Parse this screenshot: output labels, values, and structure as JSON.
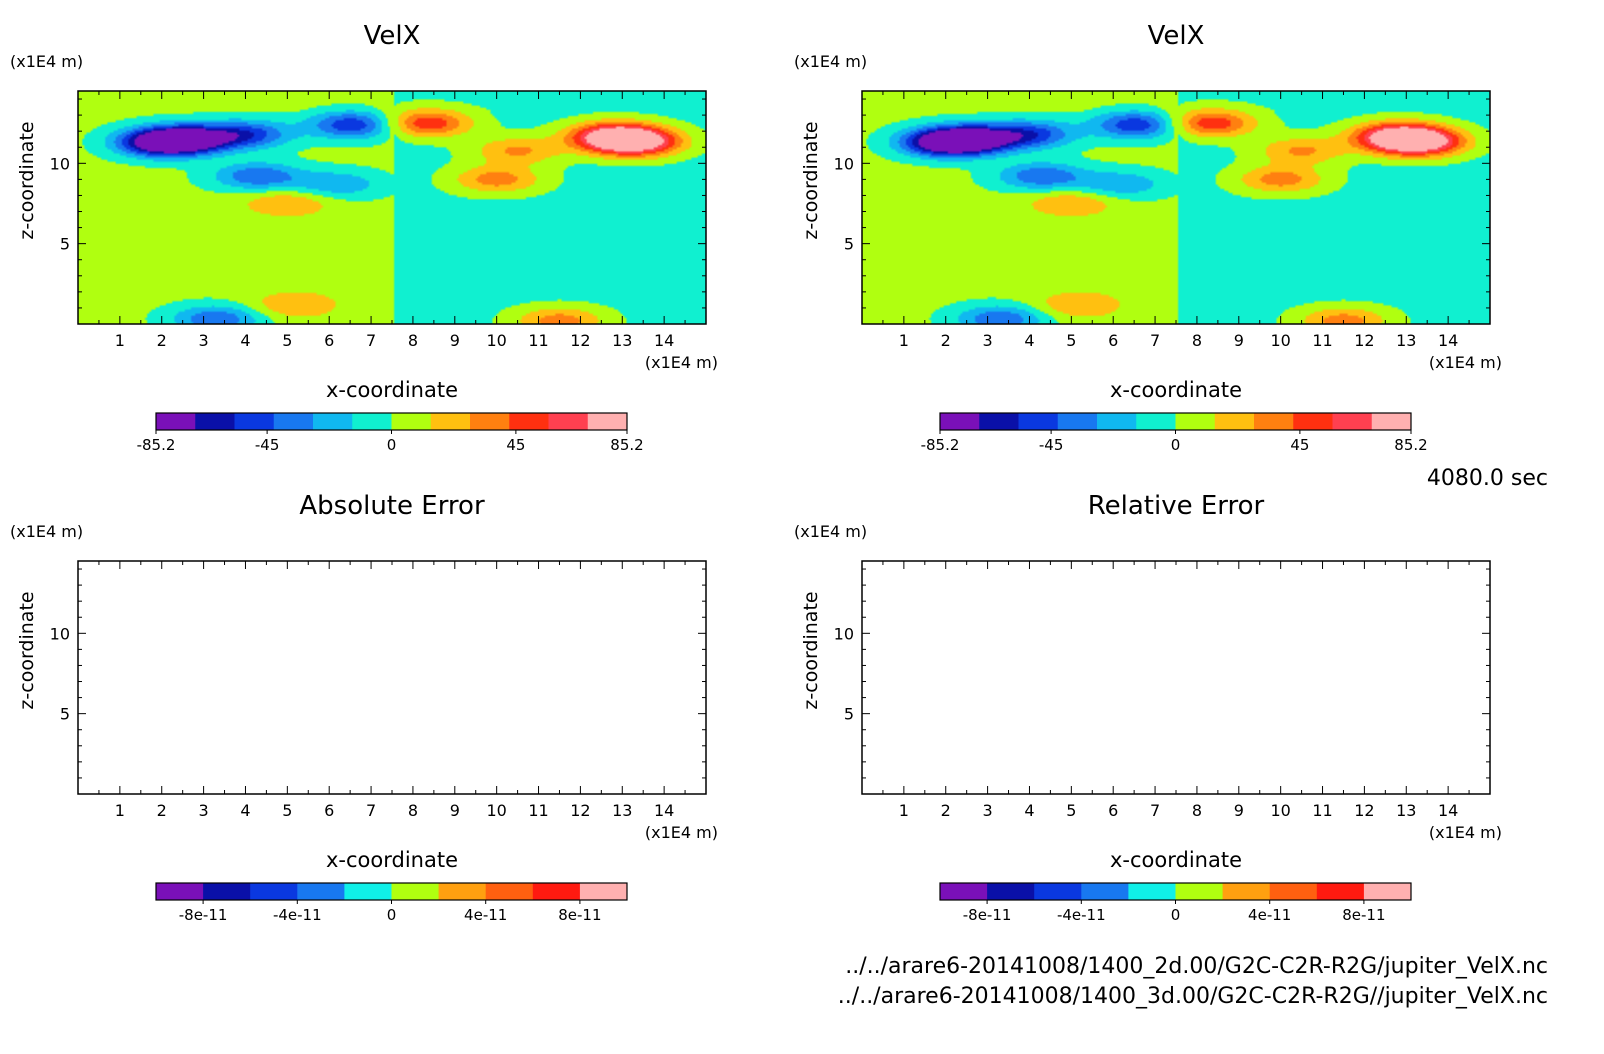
{
  "time_label": "4080.0 sec",
  "file_paths": [
    "../../arare6-20141008/1400_2d.00/G2C-C2R-R2G/jupiter_VelX.nc",
    "../../arare6-20141008/1400_3d.00/G2C-C2R-R2G//jupiter_VelX.nc"
  ],
  "chart_data": [
    {
      "type": "heatmap",
      "title": "VelX",
      "xlabel": "x-coordinate",
      "ylabel": "z-coordinate",
      "x_unit": "(x1E4 m)",
      "y_unit": "(x1E4 m)",
      "xlim": [
        0,
        15
      ],
      "ylim": [
        0,
        14.5
      ],
      "x_ticks": [
        1,
        2,
        3,
        4,
        5,
        6,
        7,
        8,
        9,
        10,
        11,
        12,
        13,
        14
      ],
      "y_ticks": [
        5,
        10
      ],
      "colorbar": {
        "levels": [
          -85.2,
          -71,
          -56.8,
          -42.6,
          -28.4,
          -14.2,
          0,
          14.2,
          28.4,
          42.6,
          56.8,
          71,
          85.2
        ],
        "labels": [
          "-85.2",
          "-45",
          "0",
          "45",
          "85.2"
        ],
        "label_values": [
          -85.2,
          -45,
          0,
          45,
          85.2
        ],
        "colors": [
          "#7a10b8",
          "#0a10a8",
          "#0a38e0",
          "#1878f0",
          "#10b8f0",
          "#10f0d0",
          "#b0ff10",
          "#ffc010",
          "#ff8010",
          "#ff3010",
          "#ff4050",
          "#ffb0b0"
        ]
      },
      "features": [
        {
          "x": 2.6,
          "z": 11.5,
          "value": -80
        },
        {
          "x": 2.0,
          "z": 11.3,
          "value": -85
        },
        {
          "x": 4.0,
          "z": 11.8,
          "value": -55
        },
        {
          "x": 4.3,
          "z": 9.2,
          "value": -45
        },
        {
          "x": 6.2,
          "z": 8.7,
          "value": -30
        },
        {
          "x": 6.6,
          "z": 12.4,
          "value": -60
        },
        {
          "x": 8.3,
          "z": 12.5,
          "value": 60
        },
        {
          "x": 12.8,
          "z": 11.7,
          "value": 80
        },
        {
          "x": 13.3,
          "z": 11.3,
          "value": 85
        },
        {
          "x": 10.5,
          "z": 10.8,
          "value": 35
        },
        {
          "x": 10.0,
          "z": 9.0,
          "value": 40
        },
        {
          "x": 5.0,
          "z": 7.5,
          "value": 25
        },
        {
          "x": 3.3,
          "z": 0.3,
          "value": -45
        },
        {
          "x": 11.5,
          "z": 0.2,
          "value": 40
        },
        {
          "x": 5.2,
          "z": 1.2,
          "value": 25
        }
      ]
    },
    {
      "type": "heatmap",
      "title": "VelX",
      "xlabel": "x-coordinate",
      "ylabel": "z-coordinate",
      "x_unit": "(x1E4 m)",
      "y_unit": "(x1E4 m)",
      "xlim": [
        0,
        15
      ],
      "ylim": [
        0,
        14.5
      ],
      "x_ticks": [
        1,
        2,
        3,
        4,
        5,
        6,
        7,
        8,
        9,
        10,
        11,
        12,
        13,
        14
      ],
      "y_ticks": [
        5,
        10
      ],
      "colorbar": {
        "levels": [
          -85.2,
          -71,
          -56.8,
          -42.6,
          -28.4,
          -14.2,
          0,
          14.2,
          28.4,
          42.6,
          56.8,
          71,
          85.2
        ],
        "labels": [
          "-85.2",
          "-45",
          "0",
          "45",
          "85.2"
        ],
        "label_values": [
          -85.2,
          -45,
          0,
          45,
          85.2
        ],
        "colors": [
          "#7a10b8",
          "#0a10a8",
          "#0a38e0",
          "#1878f0",
          "#10b8f0",
          "#10f0d0",
          "#b0ff10",
          "#ffc010",
          "#ff8010",
          "#ff3010",
          "#ff4050",
          "#ffb0b0"
        ]
      },
      "features": [
        {
          "x": 2.6,
          "z": 11.5,
          "value": -80
        },
        {
          "x": 2.0,
          "z": 11.3,
          "value": -85
        },
        {
          "x": 4.0,
          "z": 11.8,
          "value": -55
        },
        {
          "x": 4.3,
          "z": 9.2,
          "value": -45
        },
        {
          "x": 6.2,
          "z": 8.7,
          "value": -30
        },
        {
          "x": 6.6,
          "z": 12.4,
          "value": -60
        },
        {
          "x": 8.3,
          "z": 12.5,
          "value": 60
        },
        {
          "x": 12.8,
          "z": 11.7,
          "value": 80
        },
        {
          "x": 13.3,
          "z": 11.3,
          "value": 85
        },
        {
          "x": 10.5,
          "z": 10.8,
          "value": 35
        },
        {
          "x": 10.0,
          "z": 9.0,
          "value": 40
        },
        {
          "x": 5.0,
          "z": 7.5,
          "value": 25
        },
        {
          "x": 3.3,
          "z": 0.3,
          "value": -45
        },
        {
          "x": 11.5,
          "z": 0.2,
          "value": 40
        },
        {
          "x": 5.2,
          "z": 1.2,
          "value": 25
        }
      ]
    },
    {
      "type": "heatmap",
      "title": "Absolute Error",
      "xlabel": "x-coordinate",
      "ylabel": "z-coordinate",
      "x_unit": "(x1E4 m)",
      "y_unit": "(x1E4 m)",
      "xlim": [
        0,
        15
      ],
      "ylim": [
        0,
        14.5
      ],
      "x_ticks": [
        1,
        2,
        3,
        4,
        5,
        6,
        7,
        8,
        9,
        10,
        11,
        12,
        13,
        14
      ],
      "y_ticks": [
        5,
        10
      ],
      "colorbar": {
        "levels": [
          -1e-10,
          -8e-11,
          -6e-11,
          -4e-11,
          -2e-11,
          0,
          2e-11,
          4e-11,
          6e-11,
          8e-11,
          1e-10
        ],
        "labels": [
          "-8e-11",
          "-4e-11",
          "0",
          "4e-11",
          "8e-11"
        ],
        "label_values": [
          -8e-11,
          -4e-11,
          0,
          4e-11,
          8e-11
        ],
        "colors": [
          "#7a10b8",
          "#0a10a8",
          "#0a38e0",
          "#1878f0",
          "#10f0e8",
          "#b0ff10",
          "#ffa010",
          "#ff6010",
          "#ff1a10",
          "#ffb0b0"
        ]
      },
      "features": []
    },
    {
      "type": "heatmap",
      "title": "Relative Error",
      "xlabel": "x-coordinate",
      "ylabel": "z-coordinate",
      "x_unit": "(x1E4 m)",
      "y_unit": "(x1E4 m)",
      "xlim": [
        0,
        15
      ],
      "ylim": [
        0,
        14.5
      ],
      "x_ticks": [
        1,
        2,
        3,
        4,
        5,
        6,
        7,
        8,
        9,
        10,
        11,
        12,
        13,
        14
      ],
      "y_ticks": [
        5,
        10
      ],
      "colorbar": {
        "levels": [
          -1e-10,
          -8e-11,
          -6e-11,
          -4e-11,
          -2e-11,
          0,
          2e-11,
          4e-11,
          6e-11,
          8e-11,
          1e-10
        ],
        "labels": [
          "-8e-11",
          "-4e-11",
          "0",
          "4e-11",
          "8e-11"
        ],
        "label_values": [
          -8e-11,
          -4e-11,
          0,
          4e-11,
          8e-11
        ],
        "colors": [
          "#7a10b8",
          "#0a10a8",
          "#0a38e0",
          "#1878f0",
          "#10f0e8",
          "#b0ff10",
          "#ffa010",
          "#ff6010",
          "#ff1a10",
          "#ffb0b0"
        ]
      },
      "features": []
    }
  ]
}
